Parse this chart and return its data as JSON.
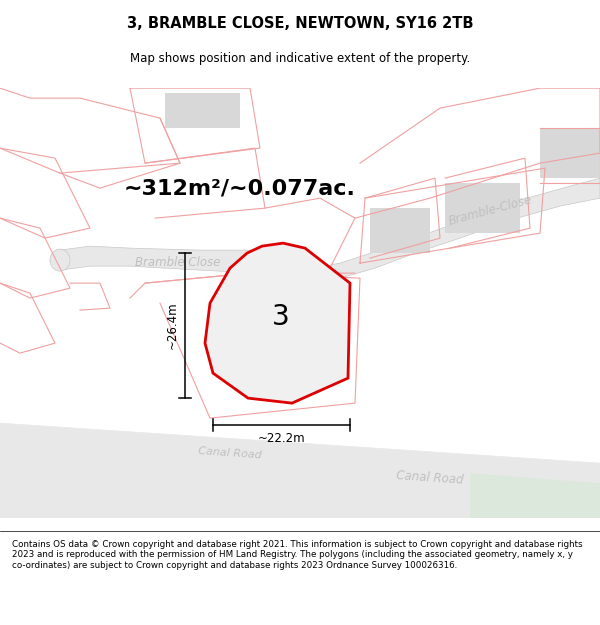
{
  "title": "3, BRAMBLE CLOSE, NEWTOWN, SY16 2TB",
  "subtitle": "Map shows position and indicative extent of the property.",
  "footer": "Contains OS data © Crown copyright and database right 2021. This information is subject to Crown copyright and database rights 2023 and is reproduced with the permission of HM Land Registry. The polygons (including the associated geometry, namely x, y co-ordinates) are subject to Crown copyright and database rights 2023 Ordnance Survey 100026316.",
  "area_text": "~312m²/~0.077ac.",
  "width_text": "~22.2m",
  "height_text": "~26.4m",
  "plot_number": "3",
  "pink": "#f0a0a0",
  "road_fill": "#e8e8e8",
  "road_outline": "#c8c8c8",
  "building_fill": "#d8d8d8",
  "plot_red": "#dd0000",
  "plot_fill": "#eeeeee",
  "dim_color": "#000000",
  "road_label_color": "#c0c0c0",
  "canal_greenish": "#e8f0e8"
}
